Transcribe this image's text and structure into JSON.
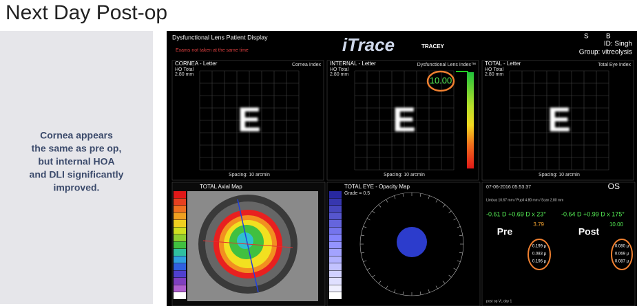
{
  "slide": {
    "title": "Next Day Post-op",
    "note_lines": [
      "Cornea appears",
      "the same as pre op,",
      "but internal HOA",
      "and DLI significantly",
      "improved."
    ]
  },
  "screen": {
    "header": {
      "title": "Dysfunctional Lens Patient Display",
      "warning": "Exams not taken at the same time",
      "logo": "iTrace",
      "logo_sub": "TRACEY",
      "eye_letter": "S",
      "initial": "B",
      "id": "ID: Singh",
      "group": "Group: vitreolysis"
    },
    "letter_panels": [
      {
        "title": "CORNEA - Letter",
        "metric": "HO Total",
        "size": "2.80 mm",
        "index": "Cornea Index",
        "letter": "E",
        "spacing": "Spacing: 10 arcmin"
      },
      {
        "title": "INTERNAL - Letter",
        "metric": "HO Total",
        "size": "2.80 mm",
        "index": "Dysfunctional Lens Index™",
        "letter": "E",
        "spacing": "Spacing: 10 arcmin",
        "dli": "10.00"
      },
      {
        "title": "TOTAL - Letter",
        "metric": "HO Total",
        "size": "2.80 mm",
        "index": "Total Eye Index",
        "letter": "E",
        "spacing": "Spacing: 10 arcmin"
      }
    ],
    "axial_map": {
      "title": "TOTAL Axial Map"
    },
    "opacity_map": {
      "title": "TOTAL EYE - Opacity Map",
      "grade": "Grade = 0.5"
    },
    "summary": {
      "datetime": "07-06-2016  05:53:37",
      "eye": "OS",
      "scan": "Limbus 10.67 mm / Pupil 4.80 mm / Scan 2.80 mm",
      "pre_refraction": "-0.61 D +0.69 D x 23°",
      "post_refraction": "-0.64 D +0.99 D x 175°",
      "pre_index": "3.79",
      "post_index": "10.00",
      "pre_label": "Pre",
      "post_label": "Post",
      "pre_values": [
        "0.199 µ",
        "0.083 µ",
        "0.196 µ"
      ],
      "post_values": [
        "0.080 µ",
        "0.069 µ",
        "0.087 µ"
      ],
      "footer": "post op VL day 1"
    }
  }
}
